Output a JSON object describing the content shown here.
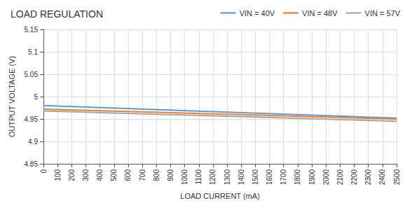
{
  "chart_data": {
    "type": "line",
    "title": "LOAD REGULATION",
    "xlabel": "LOAD CURRENT (mA)",
    "ylabel": "OUTPUT VOLTAGE (V)",
    "x": [
      0,
      2500
    ],
    "series": [
      {
        "name": "VIN = 40V",
        "color": "#5b9bd5",
        "values": [
          4.98,
          4.952
        ]
      },
      {
        "name": "VIN = 48V",
        "color": "#ed7d31",
        "values": [
          4.972,
          4.95
        ]
      },
      {
        "name": "VIN = 57V",
        "color": "#a5a5a5",
        "values": [
          4.968,
          4.945
        ]
      }
    ],
    "xlim": [
      0,
      2500
    ],
    "xticks": [
      0,
      100,
      200,
      300,
      400,
      500,
      600,
      700,
      800,
      900,
      1000,
      1100,
      1200,
      1300,
      1400,
      1500,
      1600,
      1700,
      1800,
      1900,
      2000,
      2100,
      2200,
      2300,
      2400,
      2500
    ],
    "ylim": [
      4.85,
      5.15
    ],
    "yticks": [
      4.85,
      4.9,
      4.95,
      5.0,
      5.05,
      5.1,
      5.15
    ],
    "grid": true,
    "legend": "upper right"
  }
}
